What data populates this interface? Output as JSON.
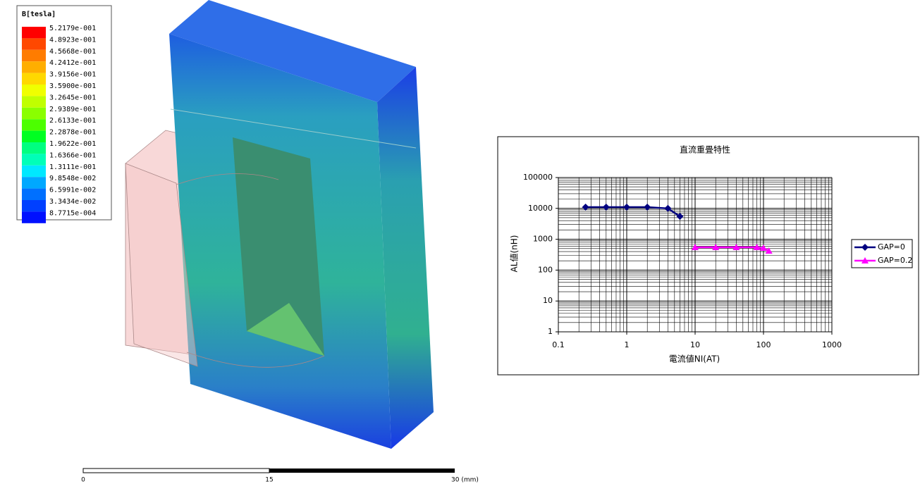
{
  "legend": {
    "title": "B[tesla]",
    "entries": [
      {
        "label": "5.2179e-001",
        "color": "#ff0000"
      },
      {
        "label": "4.8923e-001",
        "color": "#ff4800"
      },
      {
        "label": "4.5668e-001",
        "color": "#ff7c00"
      },
      {
        "label": "4.2412e-001",
        "color": "#ffae00"
      },
      {
        "label": "3.9156e-001",
        "color": "#ffd800"
      },
      {
        "label": "3.5900e-001",
        "color": "#f0ff00"
      },
      {
        "label": "3.2645e-001",
        "color": "#c0ff00"
      },
      {
        "label": "2.9389e-001",
        "color": "#8aff00"
      },
      {
        "label": "2.6133e-001",
        "color": "#4cff00"
      },
      {
        "label": "2.2878e-001",
        "color": "#00ff22"
      },
      {
        "label": "1.9622e-001",
        "color": "#00ff80"
      },
      {
        "label": "1.6366e-001",
        "color": "#00ffb8"
      },
      {
        "label": "1.3111e-001",
        "color": "#00e8ff"
      },
      {
        "label": "9.8548e-002",
        "color": "#00a8ff"
      },
      {
        "label": "6.5991e-002",
        "color": "#0070ff"
      },
      {
        "label": "3.3434e-002",
        "color": "#0040ff"
      },
      {
        "label": "8.7715e-004",
        "color": "#0010ff"
      }
    ]
  },
  "scale_bar": {
    "labels": [
      "0",
      "15",
      "30 (mm)"
    ]
  },
  "chart_data": {
    "type": "line",
    "title": "直流重畳特性",
    "x_label": "電流値NI(AT)",
    "y_label": "AL値(nH)",
    "xlog": true,
    "ylog": true,
    "grid": true,
    "xlim": [
      0.1,
      1000
    ],
    "xticks": [
      0.1,
      1,
      10,
      100,
      1000
    ],
    "ylim": [
      1,
      100000
    ],
    "yticks": [
      1,
      10,
      100,
      1000,
      10000,
      100000
    ],
    "legend": "right",
    "series": [
      {
        "name": "GAP=0",
        "color": "#000080",
        "marker": "diamond",
        "x": [
          0.25,
          0.5,
          1,
          2,
          4,
          6
        ],
        "values": [
          11000,
          11000,
          11000,
          11000,
          10000,
          5500
        ]
      },
      {
        "name": "GAP=0.2",
        "color": "#ff00ff",
        "marker": "triangle",
        "x": [
          10,
          20,
          40,
          80,
          100,
          120
        ],
        "values": [
          550,
          550,
          550,
          550,
          520,
          420
        ]
      }
    ]
  }
}
